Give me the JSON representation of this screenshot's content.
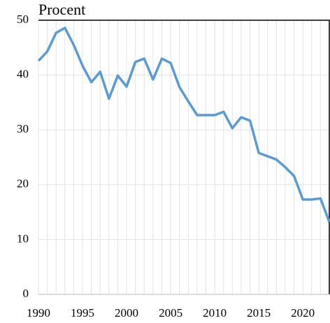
{
  "chart_data": {
    "type": "line",
    "y_label": "Procent",
    "x": [
      1990,
      1991,
      1992,
      1993,
      1994,
      1995,
      1996,
      1997,
      1998,
      1999,
      2000,
      2001,
      2002,
      2003,
      2004,
      2005,
      2006,
      2007,
      2008,
      2009,
      2010,
      2011,
      2012,
      2013,
      2014,
      2015,
      2016,
      2017,
      2018,
      2019,
      2020,
      2021,
      2022,
      2023
    ],
    "series": [
      {
        "name": null,
        "color": "#5b9bd5",
        "values": [
          42.6,
          44.3,
          47.7,
          48.6,
          45.5,
          41.7,
          38.7,
          40.6,
          35.7,
          39.9,
          37.9,
          42.4,
          43.0,
          39.2,
          43.0,
          42.2,
          37.8,
          35.2,
          32.7,
          32.7,
          32.7,
          33.3,
          30.3,
          32.3,
          31.7,
          25.8,
          25.2,
          24.6,
          23.2,
          21.6,
          17.3,
          17.3,
          17.5,
          13.2
        ]
      }
    ],
    "xlim": [
      1990,
      2023
    ],
    "xticks": [
      1990,
      1995,
      2000,
      2005,
      2010,
      2015,
      2020
    ],
    "ylim": [
      0,
      50
    ],
    "yticks": [
      0,
      10,
      20,
      30,
      40,
      50
    ],
    "grid": true
  }
}
